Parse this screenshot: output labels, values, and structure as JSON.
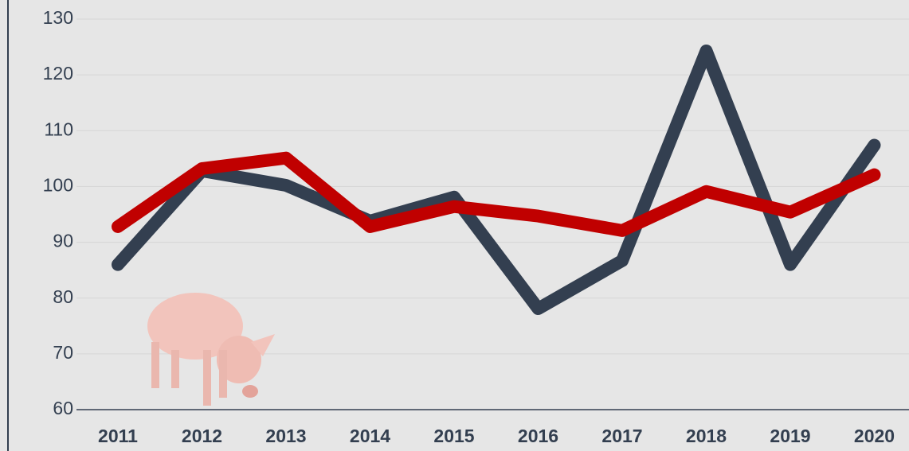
{
  "chart_data": {
    "type": "line",
    "categories": [
      "2011",
      "2012",
      "2013",
      "2014",
      "2015",
      "2016",
      "2017",
      "2018",
      "2019",
      "2020"
    ],
    "series": [
      {
        "color": "#333f50",
        "values": [
          86,
          102.8,
          100.2,
          93.8,
          98.1,
          78.1,
          86.7,
          124.3,
          86,
          107.4
        ]
      },
      {
        "color": "#c00000",
        "values": [
          92.8,
          103.2,
          105.1,
          92.8,
          96.4,
          94.7,
          92.1,
          99.1,
          95.4,
          102.1
        ]
      }
    ],
    "ylim": [
      60,
      130
    ],
    "yticks": [
      60,
      70,
      80,
      90,
      100,
      110,
      120,
      130
    ],
    "grid": true
  }
}
